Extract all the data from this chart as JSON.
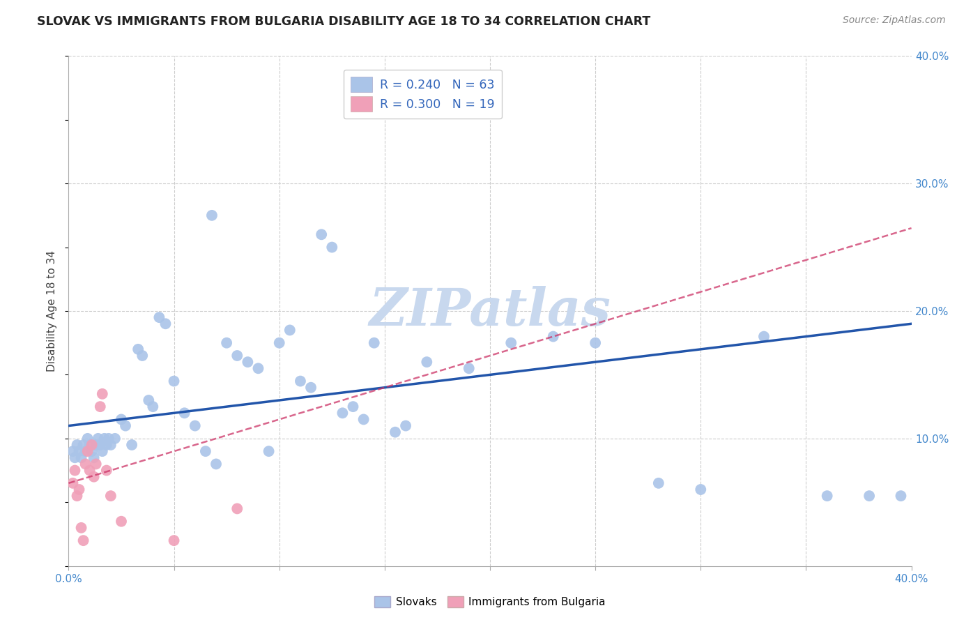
{
  "title": "SLOVAK VS IMMIGRANTS FROM BULGARIA DISABILITY AGE 18 TO 34 CORRELATION CHART",
  "source": "Source: ZipAtlas.com",
  "ylabel": "Disability Age 18 to 34",
  "xlim": [
    0.0,
    0.4
  ],
  "ylim": [
    0.0,
    0.4
  ],
  "slovaks": {
    "color": "#aac4e8",
    "line_color": "#2255aa",
    "x": [
      0.002,
      0.003,
      0.004,
      0.005,
      0.006,
      0.007,
      0.008,
      0.009,
      0.01,
      0.011,
      0.012,
      0.013,
      0.014,
      0.015,
      0.016,
      0.017,
      0.018,
      0.019,
      0.02,
      0.022,
      0.025,
      0.027,
      0.03,
      0.033,
      0.035,
      0.038,
      0.04,
      0.043,
      0.046,
      0.05,
      0.055,
      0.06,
      0.065,
      0.068,
      0.07,
      0.075,
      0.08,
      0.085,
      0.09,
      0.095,
      0.1,
      0.105,
      0.11,
      0.115,
      0.12,
      0.125,
      0.13,
      0.135,
      0.14,
      0.145,
      0.155,
      0.16,
      0.17,
      0.19,
      0.21,
      0.23,
      0.25,
      0.28,
      0.3,
      0.33,
      0.36,
      0.38,
      0.395
    ],
    "y": [
      0.09,
      0.085,
      0.095,
      0.09,
      0.085,
      0.095,
      0.09,
      0.1,
      0.095,
      0.09,
      0.085,
      0.095,
      0.1,
      0.095,
      0.09,
      0.1,
      0.095,
      0.1,
      0.095,
      0.1,
      0.115,
      0.11,
      0.095,
      0.17,
      0.165,
      0.13,
      0.125,
      0.195,
      0.19,
      0.145,
      0.12,
      0.11,
      0.09,
      0.275,
      0.08,
      0.175,
      0.165,
      0.16,
      0.155,
      0.09,
      0.175,
      0.185,
      0.145,
      0.14,
      0.26,
      0.25,
      0.12,
      0.125,
      0.115,
      0.175,
      0.105,
      0.11,
      0.16,
      0.155,
      0.175,
      0.18,
      0.175,
      0.065,
      0.06,
      0.18,
      0.055,
      0.055,
      0.055
    ]
  },
  "bulgaria": {
    "color": "#f0a0b8",
    "line_color": "#cc3366",
    "x": [
      0.002,
      0.003,
      0.004,
      0.005,
      0.006,
      0.007,
      0.008,
      0.009,
      0.01,
      0.011,
      0.012,
      0.013,
      0.015,
      0.016,
      0.018,
      0.02,
      0.025,
      0.05,
      0.08
    ],
    "y": [
      0.065,
      0.075,
      0.055,
      0.06,
      0.03,
      0.02,
      0.08,
      0.09,
      0.075,
      0.095,
      0.07,
      0.08,
      0.125,
      0.135,
      0.075,
      0.055,
      0.035,
      0.02,
      0.045
    ]
  },
  "blue_line": {
    "x0": 0.0,
    "y0": 0.11,
    "x1": 0.4,
    "y1": 0.19
  },
  "pink_line": {
    "x0": 0.0,
    "y0": 0.065,
    "x1": 0.4,
    "y1": 0.265
  },
  "background_color": "#ffffff",
  "grid_color": "#cccccc",
  "watermark": "ZIPatlas",
  "watermark_color": "#c8d8ee"
}
